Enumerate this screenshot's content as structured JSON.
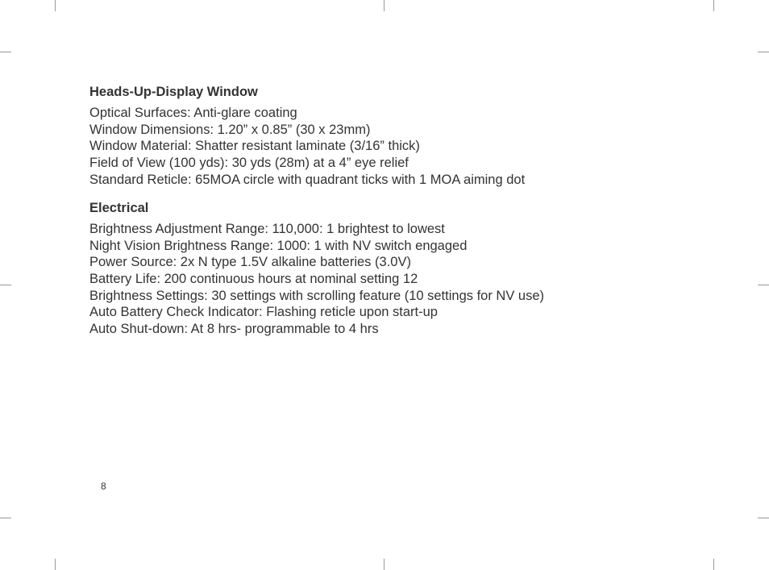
{
  "sections": [
    {
      "heading": "Heads-Up-Display Window",
      "lines": [
        "Optical Surfaces: Anti-glare coating",
        "Window Dimensions: 1.20” x 0.85” (30 x 23mm)",
        "Window Material: Shatter resistant laminate (3/16” thick)",
        "Field of View (100 yds): 30 yds (28m) at a 4” eye relief",
        "Standard Reticle: 65MOA circle with quadrant ticks with 1 MOA aiming dot"
      ]
    },
    {
      "heading": "Electrical",
      "lines": [
        "Brightness Adjustment Range: 110,000: 1 brightest to lowest",
        "Night Vision Brightness Range: 1000: 1 with NV switch engaged",
        "Power Source: 2x N type 1.5V alkaline batteries (3.0V)",
        "Battery Life: 200 continuous hours at nominal setting 12",
        "Brightness Settings: 30 settings with scrolling feature (10 settings for NV use)",
        "Auto Battery Check Indicator: Flashing reticle upon start-up",
        "Auto Shut-down: At 8 hrs- programmable to 4 hrs"
      ]
    }
  ],
  "pageNumber": "8"
}
